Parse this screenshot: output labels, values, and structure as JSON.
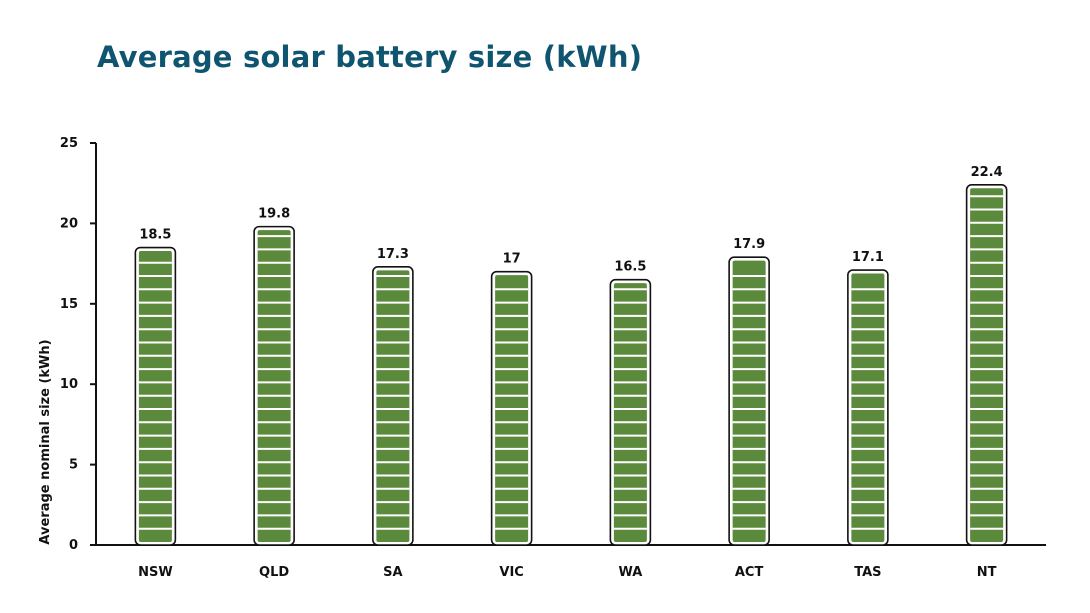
{
  "chart_data": {
    "type": "bar",
    "title": "Average solar battery size (kWh)",
    "xlabel": "",
    "ylabel": "Average nominal size (kWh)",
    "categories": [
      "NSW",
      "QLD",
      "SA",
      "VIC",
      "WA",
      "ACT",
      "TAS",
      "NT"
    ],
    "values": [
      18.5,
      19.8,
      17.3,
      17,
      16.5,
      17.9,
      17.1,
      22.4
    ],
    "value_labels": [
      "18.5",
      "19.8",
      "17.3",
      "17",
      "16.5",
      "17.9",
      "17.1",
      "22.4"
    ],
    "ylim": [
      0,
      25
    ],
    "yticks": [
      0,
      5,
      10,
      15,
      20,
      25
    ],
    "grid": false,
    "legend": "none",
    "bar_color": "#5b8a3c",
    "bar_outline_color": "#111111",
    "segment_divider_color": "#ffffff"
  }
}
